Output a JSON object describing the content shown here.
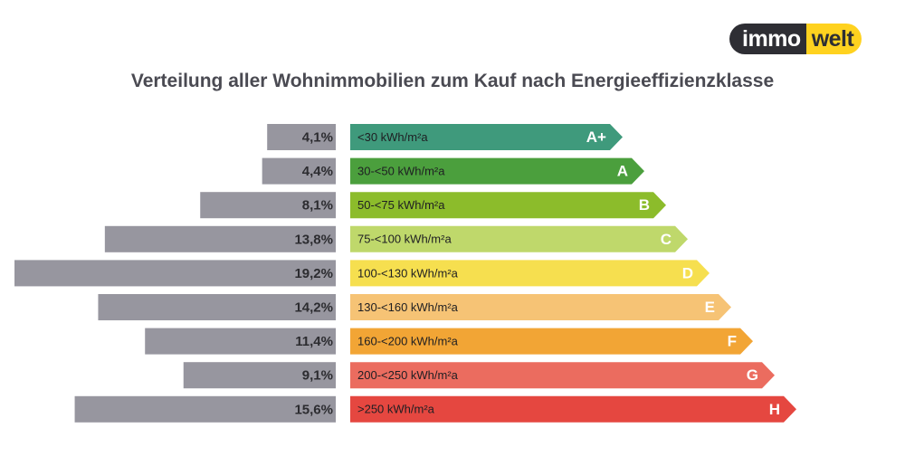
{
  "logo": {
    "left": "immo",
    "right": "welt"
  },
  "chart_data": {
    "type": "bar",
    "title": "Verteilung aller Wohnimmobilien zum Kauf nach Energieeffizienzklasse",
    "categories": [
      "A+",
      "A",
      "B",
      "C",
      "D",
      "E",
      "F",
      "G",
      "H"
    ],
    "ranges": [
      "<30 kWh/m²a",
      "30-<50 kWh/m²a",
      "50-<75 kWh/m²a",
      "75-<100 kWh/m²a",
      "100-<130 kWh/m²a",
      "130-<160 kWh/m²a",
      "160-<200 kWh/m²a",
      "200-<250 kWh/m²a",
      ">250 kWh/m²a"
    ],
    "values": [
      4.1,
      4.4,
      8.1,
      13.8,
      19.2,
      14.2,
      11.4,
      9.1,
      15.6
    ],
    "value_labels": [
      "4,1%",
      "4,4%",
      "8,1%",
      "13,8%",
      "19,2%",
      "14,2%",
      "11,4%",
      "9,1%",
      "15,6%"
    ],
    "unit": "%",
    "colors": {
      "share_bar": "#97969f",
      "classes": [
        "#3f9a7c",
        "#4b9f3d",
        "#8cbc2b",
        "#bfd86b",
        "#f6df4f",
        "#f6c375",
        "#f2a535",
        "#eb6c5f",
        "#e54740"
      ]
    }
  }
}
